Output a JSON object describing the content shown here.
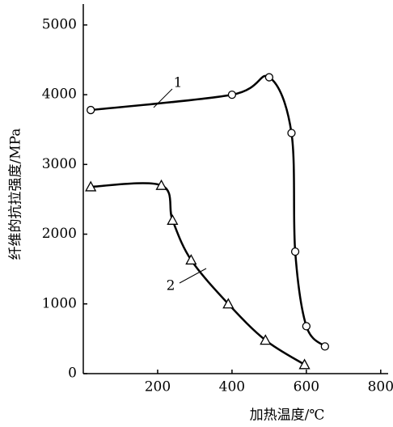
{
  "chart_data": {
    "type": "line",
    "x_label": "加热温度/℃",
    "y_label": "纤维的抗拉强度/MPa",
    "series": [
      {
        "name": "1",
        "color": "#000000",
        "marker": "circle",
        "x": [
          20,
          400,
          500,
          560,
          570,
          600,
          650
        ],
        "values": [
          3780,
          4000,
          4250,
          3450,
          1750,
          680,
          390
        ]
      },
      {
        "name": "2",
        "color": "#000000",
        "marker": "triangle",
        "x": [
          20,
          210,
          240,
          290,
          390,
          490,
          595
        ],
        "values": [
          2680,
          2700,
          2200,
          1630,
          1000,
          480,
          130
        ]
      }
    ],
    "xlim": [
      0,
      820
    ],
    "xticks": [
      200,
      400,
      600,
      800
    ],
    "ylim": [
      0,
      5300
    ],
    "yticks": [
      0,
      1000,
      2000,
      3000,
      4000,
      5000
    ],
    "grid": false
  }
}
